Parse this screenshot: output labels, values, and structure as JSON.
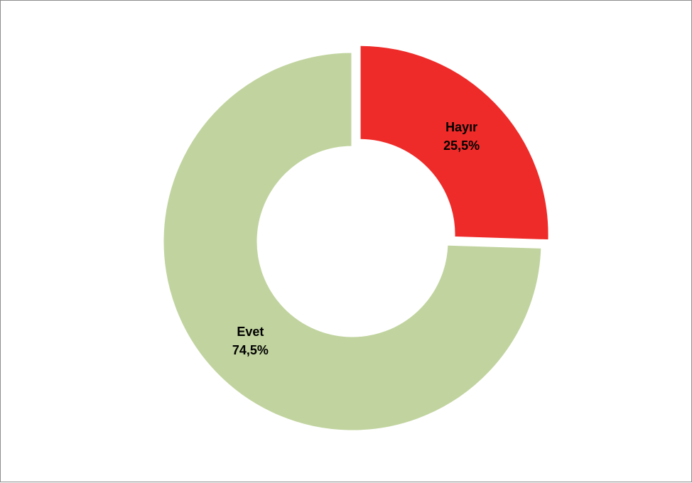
{
  "chart_data": {
    "type": "pie",
    "variant": "doughnut",
    "title": "",
    "categories": [
      "Hayır",
      "Evet"
    ],
    "values": [
      25.5,
      74.5
    ],
    "value_labels": [
      "25,5%",
      "74,5%"
    ],
    "exploded": [
      "Hayır"
    ],
    "colors": [
      "#ee2b29",
      "#c1d49f"
    ],
    "legend": "none"
  }
}
